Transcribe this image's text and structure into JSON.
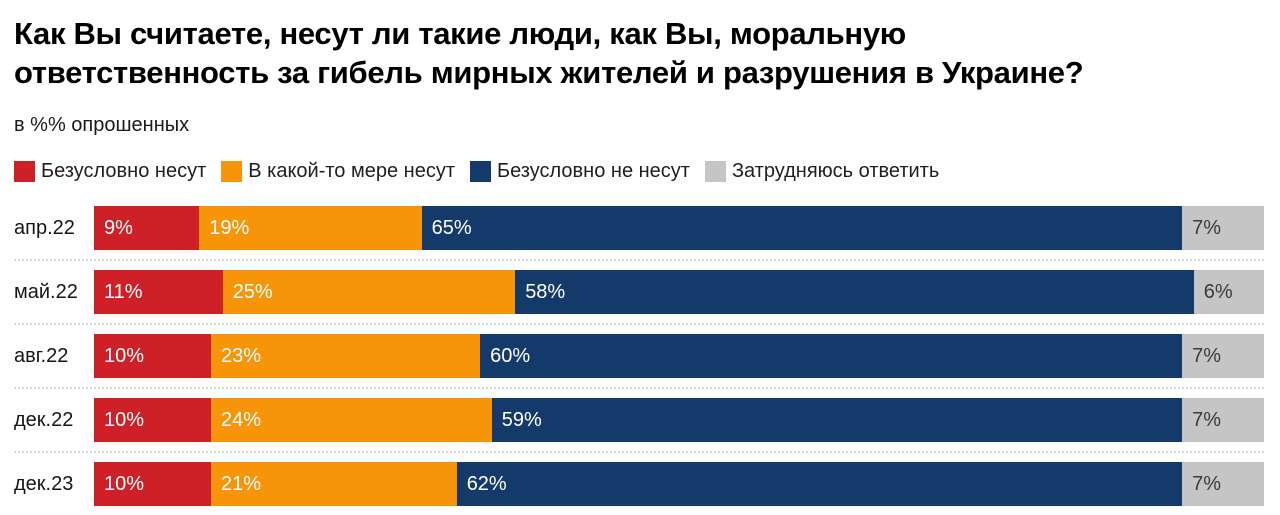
{
  "title": {
    "line1": "Как Вы считаете, несут ли такие люди, как Вы, моральную",
    "line2": "ответственность за гибель мирных жителей и разрушения в Украине?"
  },
  "subtitle": "в %% опрошенных",
  "colors": {
    "definitely_bear": "#cd2127",
    "somewhat_bear": "#f7950a",
    "definitely_not_bear": "#133a6b",
    "hard_to_answer": "#c5c5c5",
    "separator": "#d9d9d9",
    "text": "#161616"
  },
  "chart_data": {
    "type": "bar",
    "stacked": true,
    "orientation": "horizontal",
    "title": "Как Вы считаете, несут ли такие люди, как Вы, моральную ответственность за гибель мирных жителей и разрушения в Украине?",
    "subtitle": "в %% опрошенных",
    "categories": [
      "апр.22",
      "май.22",
      "авг.22",
      "дек.22",
      "дек.23"
    ],
    "series": [
      {
        "key": "definitely-bear",
        "name": "Безусловно несут",
        "color": "#cd2127",
        "label_color": "#ffffff",
        "values": [
          9,
          11,
          10,
          10,
          10
        ]
      },
      {
        "key": "somewhat-bear",
        "name": "В какой-то мере несут",
        "color": "#f7950a",
        "label_color": "#ffffff",
        "values": [
          19,
          25,
          23,
          24,
          21
        ]
      },
      {
        "key": "definitely-not-bear",
        "name": "Безусловно не несут",
        "color": "#133a6b",
        "label_color": "#ffffff",
        "values": [
          65,
          58,
          60,
          59,
          62
        ]
      },
      {
        "key": "hard-to-answer",
        "name": "Затрудняюсь ответить",
        "color": "#c5c5c5",
        "label_color": "#3a3a3a",
        "values": [
          7,
          6,
          7,
          7,
          7
        ]
      }
    ],
    "value_suffix": "%",
    "xlim": [
      0,
      100
    ],
    "legend_position": "top",
    "grid": false
  }
}
